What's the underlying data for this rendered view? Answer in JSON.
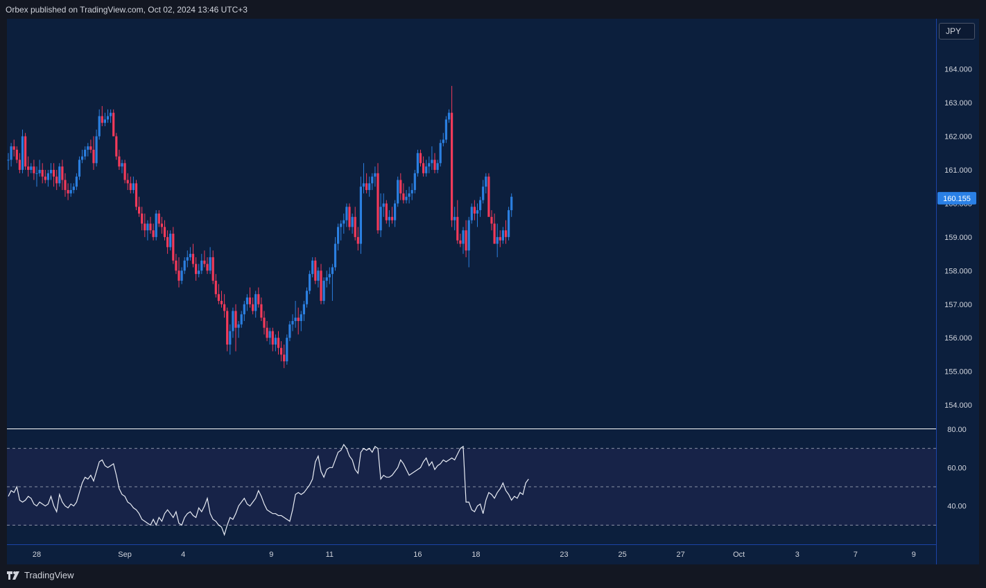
{
  "header": {
    "text": "Orbex published on TradingView.com, Oct 02, 2024 13:46 UTC+3"
  },
  "footer": {
    "brand": "TradingView"
  },
  "currency": "JPY",
  "colors": {
    "background": "#0c1f3d",
    "up": "#2b7fe0",
    "down": "#f23a5a",
    "rsi_line": "#e9edf5",
    "rsi_band": "#172348",
    "price_label_bg": "#2a80e6",
    "axis_text": "#d1d4dc"
  },
  "chart_data": [
    {
      "type": "candlestick",
      "symbol_currency": "JPY",
      "ylim": [
        153.3,
        165.5
      ],
      "y_ticks": [
        "164.000",
        "163.000",
        "162.000",
        "161.000",
        "160.000",
        "159.000",
        "158.000",
        "157.000",
        "156.000",
        "155.000",
        "154.000"
      ],
      "last_price_label": "160.155",
      "x_ticks": [
        "28",
        "Sep",
        "4",
        "9",
        "11",
        "16",
        "18",
        "23",
        "25",
        "27",
        "Oct",
        "3",
        "7",
        "9"
      ],
      "x_tick_bar_index": [
        10,
        41,
        61.5,
        92.5,
        113,
        144,
        164.5,
        195.5,
        216,
        236.5,
        257,
        277.5,
        298,
        318.5
      ],
      "candles": [
        [
          161.3,
          161.5,
          161.0,
          161.3
        ],
        [
          161.3,
          161.8,
          161.1,
          161.7
        ],
        [
          161.7,
          161.9,
          161.4,
          161.6
        ],
        [
          161.6,
          161.7,
          161.2,
          161.3
        ],
        [
          161.3,
          161.5,
          160.9,
          161.0
        ],
        [
          161.0,
          162.2,
          160.9,
          162.0
        ],
        [
          162.0,
          162.1,
          161.0,
          161.1
        ],
        [
          161.1,
          161.4,
          160.8,
          161.0
        ],
        [
          161.0,
          161.2,
          160.9,
          161.1
        ],
        [
          161.1,
          161.3,
          160.7,
          160.9
        ],
        [
          160.9,
          161.1,
          160.5,
          160.9
        ],
        [
          160.9,
          161.3,
          160.8,
          161.0
        ],
        [
          161.0,
          161.2,
          160.6,
          160.8
        ],
        [
          160.8,
          161.0,
          160.6,
          160.7
        ],
        [
          160.7,
          161.0,
          160.5,
          160.9
        ],
        [
          160.9,
          161.2,
          160.7,
          161.0
        ],
        [
          161.0,
          161.2,
          160.5,
          160.8
        ],
        [
          160.8,
          161.0,
          160.4,
          160.6
        ],
        [
          160.6,
          161.2,
          160.5,
          161.1
        ],
        [
          161.1,
          161.3,
          160.4,
          160.7
        ],
        [
          160.7,
          160.9,
          160.2,
          160.4
        ],
        [
          160.4,
          160.6,
          160.1,
          160.3
        ],
        [
          160.3,
          160.6,
          160.2,
          160.4
        ],
        [
          160.4,
          160.6,
          160.3,
          160.5
        ],
        [
          160.5,
          160.9,
          160.4,
          160.8
        ],
        [
          160.8,
          161.4,
          160.7,
          161.3
        ],
        [
          161.3,
          161.6,
          161.2,
          161.4
        ],
        [
          161.4,
          161.7,
          161.3,
          161.6
        ],
        [
          161.6,
          161.8,
          161.4,
          161.7
        ],
        [
          161.7,
          161.9,
          161.5,
          161.6
        ],
        [
          161.6,
          162.0,
          161.0,
          161.2
        ],
        [
          161.2,
          162.2,
          161.1,
          162.0
        ],
        [
          162.0,
          162.8,
          161.9,
          162.6
        ],
        [
          162.6,
          162.9,
          162.3,
          162.4
        ],
        [
          162.4,
          162.7,
          162.3,
          162.5
        ],
        [
          162.5,
          162.8,
          162.4,
          162.6
        ],
        [
          162.6,
          162.8,
          162.4,
          162.7
        ],
        [
          162.7,
          162.8,
          162.1,
          162.0
        ],
        [
          162.0,
          162.1,
          161.3,
          161.4
        ],
        [
          161.4,
          161.6,
          161.0,
          161.1
        ],
        [
          161.1,
          161.3,
          160.9,
          161.2
        ],
        [
          161.2,
          161.3,
          160.6,
          160.7
        ],
        [
          160.7,
          160.9,
          160.4,
          160.6
        ],
        [
          160.6,
          160.8,
          160.3,
          160.4
        ],
        [
          160.4,
          160.8,
          160.3,
          160.6
        ],
        [
          160.6,
          160.7,
          159.8,
          159.9
        ],
        [
          159.9,
          160.2,
          159.6,
          159.7
        ],
        [
          159.7,
          159.9,
          159.2,
          159.4
        ],
        [
          159.4,
          159.7,
          159.0,
          159.2
        ],
        [
          159.2,
          159.5,
          158.9,
          159.4
        ],
        [
          159.4,
          159.6,
          159.1,
          159.2
        ],
        [
          159.2,
          159.4,
          158.9,
          159.0
        ],
        [
          159.0,
          159.8,
          158.9,
          159.7
        ],
        [
          159.7,
          159.8,
          159.3,
          159.4
        ],
        [
          159.4,
          159.6,
          159.1,
          159.3
        ],
        [
          159.3,
          159.5,
          158.9,
          159.0
        ],
        [
          159.0,
          159.2,
          158.5,
          158.7
        ],
        [
          158.7,
          159.2,
          158.6,
          159.1
        ],
        [
          159.1,
          159.3,
          158.2,
          158.3
        ],
        [
          158.3,
          158.5,
          157.9,
          158.0
        ],
        [
          158.0,
          158.4,
          157.5,
          157.7
        ],
        [
          157.7,
          158.1,
          157.6,
          158.0
        ],
        [
          158.0,
          158.4,
          157.9,
          158.3
        ],
        [
          158.3,
          158.6,
          158.1,
          158.4
        ],
        [
          158.4,
          158.7,
          158.3,
          158.5
        ],
        [
          158.5,
          158.8,
          158.1,
          158.2
        ],
        [
          158.2,
          158.4,
          157.7,
          157.9
        ],
        [
          157.9,
          158.2,
          157.8,
          158.0
        ],
        [
          158.0,
          158.5,
          157.9,
          158.3
        ],
        [
          158.3,
          158.6,
          158.1,
          158.2
        ],
        [
          158.2,
          158.4,
          157.9,
          158.0
        ],
        [
          158.0,
          158.7,
          157.9,
          158.4
        ],
        [
          158.4,
          158.6,
          157.6,
          157.7
        ],
        [
          157.7,
          157.9,
          157.2,
          157.3
        ],
        [
          157.3,
          157.6,
          157.0,
          157.1
        ],
        [
          157.1,
          157.4,
          156.9,
          157.0
        ],
        [
          157.0,
          157.3,
          156.6,
          156.8
        ],
        [
          156.8,
          156.9,
          155.6,
          155.8
        ],
        [
          155.8,
          156.4,
          155.5,
          156.2
        ],
        [
          156.2,
          156.9,
          156.0,
          156.8
        ],
        [
          156.8,
          157.0,
          155.6,
          156.3
        ],
        [
          156.3,
          156.5,
          156.0,
          156.4
        ],
        [
          156.4,
          156.8,
          156.3,
          156.7
        ],
        [
          156.7,
          157.1,
          156.5,
          157.0
        ],
        [
          157.0,
          157.3,
          156.8,
          157.2
        ],
        [
          157.2,
          157.5,
          156.9,
          157.0
        ],
        [
          157.0,
          157.2,
          156.7,
          156.8
        ],
        [
          156.8,
          157.4,
          156.6,
          157.3
        ],
        [
          157.3,
          157.5,
          156.9,
          157.0
        ],
        [
          157.0,
          157.2,
          156.5,
          156.6
        ],
        [
          156.6,
          156.8,
          156.1,
          156.3
        ],
        [
          156.3,
          156.5,
          155.9,
          156.0
        ],
        [
          156.0,
          156.3,
          155.8,
          156.2
        ],
        [
          156.2,
          156.3,
          155.6,
          155.8
        ],
        [
          155.8,
          156.1,
          155.6,
          156.0
        ],
        [
          156.0,
          156.2,
          155.5,
          155.7
        ],
        [
          155.7,
          155.9,
          155.3,
          155.5
        ],
        [
          155.5,
          155.8,
          155.1,
          155.3
        ],
        [
          155.3,
          156.1,
          155.2,
          156.0
        ],
        [
          156.0,
          156.5,
          155.9,
          156.4
        ],
        [
          156.4,
          156.7,
          156.2,
          156.5
        ],
        [
          156.5,
          157.1,
          156.3,
          156.6
        ],
        [
          156.6,
          156.9,
          156.1,
          156.5
        ],
        [
          156.5,
          156.8,
          156.2,
          156.7
        ],
        [
          156.7,
          157.1,
          156.5,
          157.0
        ],
        [
          157.0,
          157.5,
          156.9,
          157.4
        ],
        [
          157.4,
          158.0,
          157.3,
          157.9
        ],
        [
          157.9,
          158.4,
          157.8,
          158.3
        ],
        [
          158.3,
          158.4,
          157.6,
          157.7
        ],
        [
          157.7,
          158.1,
          157.5,
          158.0
        ],
        [
          158.0,
          158.2,
          157.0,
          157.1
        ],
        [
          157.1,
          157.8,
          157.0,
          157.7
        ],
        [
          157.7,
          158.0,
          157.5,
          157.8
        ],
        [
          157.8,
          158.1,
          157.6,
          157.9
        ],
        [
          157.9,
          158.2,
          157.1,
          158.1
        ],
        [
          158.1,
          159.0,
          158.0,
          158.8
        ],
        [
          158.8,
          159.4,
          158.6,
          159.3
        ],
        [
          159.3,
          159.5,
          158.9,
          159.4
        ],
        [
          159.4,
          159.7,
          159.1,
          159.5
        ],
        [
          159.5,
          160.0,
          159.3,
          159.9
        ],
        [
          159.9,
          160.0,
          159.2,
          159.3
        ],
        [
          159.3,
          159.7,
          159.1,
          159.6
        ],
        [
          159.6,
          159.9,
          158.9,
          159.0
        ],
        [
          159.0,
          159.3,
          158.6,
          158.8
        ],
        [
          158.8,
          160.8,
          158.5,
          160.5
        ],
        [
          160.5,
          161.2,
          160.3,
          160.6
        ],
        [
          160.6,
          160.9,
          160.3,
          160.4
        ],
        [
          160.4,
          160.8,
          160.2,
          160.6
        ],
        [
          160.6,
          160.9,
          160.4,
          160.8
        ],
        [
          160.8,
          161.1,
          160.5,
          160.9
        ],
        [
          160.9,
          161.2,
          159.1,
          159.2
        ],
        [
          159.2,
          160.3,
          159.0,
          159.9
        ],
        [
          159.9,
          160.3,
          159.6,
          160.0
        ],
        [
          160.0,
          160.1,
          159.4,
          159.5
        ],
        [
          159.5,
          159.8,
          159.3,
          159.6
        ],
        [
          159.6,
          159.9,
          159.4,
          159.5
        ],
        [
          159.5,
          160.1,
          159.3,
          160.0
        ],
        [
          160.0,
          160.8,
          159.9,
          160.7
        ],
        [
          160.7,
          160.9,
          160.1,
          160.3
        ],
        [
          160.3,
          160.6,
          160.0,
          160.1
        ],
        [
          160.1,
          160.4,
          160.0,
          160.2
        ],
        [
          160.2,
          160.5,
          160.0,
          160.3
        ],
        [
          160.3,
          160.6,
          160.1,
          160.4
        ],
        [
          160.4,
          161.0,
          160.3,
          160.9
        ],
        [
          160.9,
          161.6,
          160.8,
          161.5
        ],
        [
          161.5,
          161.6,
          161.1,
          161.2
        ],
        [
          161.2,
          161.4,
          160.8,
          160.9
        ],
        [
          160.9,
          161.3,
          160.8,
          161.1
        ],
        [
          161.1,
          161.4,
          160.9,
          161.2
        ],
        [
          161.2,
          161.7,
          161.0,
          161.3
        ],
        [
          161.3,
          161.5,
          160.9,
          161.0
        ],
        [
          161.0,
          161.3,
          160.9,
          161.2
        ],
        [
          161.2,
          161.9,
          161.1,
          161.8
        ],
        [
          161.8,
          162.1,
          161.7,
          161.9
        ],
        [
          161.9,
          162.6,
          161.8,
          162.5
        ],
        [
          162.5,
          162.8,
          162.4,
          162.7
        ],
        [
          162.7,
          163.5,
          159.3,
          159.5
        ],
        [
          159.5,
          159.9,
          159.2,
          159.6
        ],
        [
          159.6,
          160.1,
          158.8,
          158.9
        ],
        [
          158.9,
          159.1,
          158.7,
          158.8
        ],
        [
          158.8,
          159.3,
          158.5,
          159.2
        ],
        [
          159.2,
          159.5,
          158.4,
          158.6
        ],
        [
          158.6,
          159.6,
          158.1,
          159.5
        ],
        [
          159.5,
          160.0,
          159.4,
          159.9
        ],
        [
          159.9,
          160.1,
          159.5,
          159.7
        ],
        [
          159.7,
          160.0,
          159.3,
          159.8
        ],
        [
          159.8,
          160.2,
          159.6,
          160.1
        ],
        [
          160.1,
          160.7,
          160.0,
          160.5
        ],
        [
          160.5,
          160.9,
          160.3,
          160.8
        ],
        [
          160.8,
          160.9,
          159.7,
          159.6
        ],
        [
          159.6,
          159.8,
          159.2,
          159.4
        ],
        [
          159.4,
          159.7,
          158.8,
          158.8
        ],
        [
          158.8,
          159.4,
          158.4,
          159.0
        ],
        [
          159.0,
          159.2,
          158.7,
          158.9
        ],
        [
          158.9,
          159.3,
          158.8,
          159.2
        ],
        [
          159.2,
          159.5,
          158.8,
          159.0
        ],
        [
          159.0,
          159.9,
          158.9,
          159.8
        ],
        [
          159.8,
          160.3,
          159.6,
          160.2
        ]
      ]
    },
    {
      "type": "line",
      "name": "",
      "ylim": [
        20,
        80
      ],
      "y_ticks": [
        "80.00",
        "60.00",
        "40.00"
      ],
      "dashed_levels": [
        70,
        50,
        30
      ],
      "values": [
        45,
        48,
        47,
        50,
        43,
        42,
        43,
        45,
        44,
        41,
        40,
        42,
        41,
        40,
        41,
        45,
        40,
        37,
        46,
        42,
        40,
        39,
        41,
        40,
        42,
        47,
        52,
        55,
        54,
        56,
        53,
        58,
        63,
        64,
        61,
        60,
        61,
        62,
        56,
        49,
        46,
        45,
        42,
        41,
        39,
        38,
        36,
        33,
        32,
        31,
        30,
        33,
        30,
        34,
        32,
        36,
        38,
        36,
        34,
        37,
        31,
        30,
        34,
        36,
        37,
        35,
        34,
        39,
        37,
        40,
        44,
        36,
        33,
        32,
        30,
        29,
        25,
        30,
        34,
        33,
        36,
        40,
        42,
        44,
        41,
        40,
        42,
        44,
        48,
        45,
        41,
        38,
        37,
        36,
        36,
        35,
        35,
        34,
        33,
        32,
        38,
        46,
        47,
        46,
        47,
        49,
        51,
        54,
        63,
        66,
        58,
        55,
        59,
        60,
        60,
        64,
        68,
        69,
        72,
        70,
        66,
        64,
        59,
        57,
        68,
        70,
        69,
        70,
        68,
        71,
        70,
        54,
        56,
        55,
        55,
        56,
        58,
        60,
        64,
        62,
        59,
        56,
        57,
        58,
        59,
        60,
        63,
        65,
        61,
        63,
        59,
        61,
        62,
        64,
        63,
        64,
        65,
        64,
        67,
        70,
        71,
        42,
        42,
        38,
        37,
        40,
        41,
        36,
        43,
        47,
        46,
        44,
        47,
        49,
        52,
        48,
        46,
        43,
        45,
        44,
        47,
        46,
        52,
        54
      ]
    }
  ]
}
